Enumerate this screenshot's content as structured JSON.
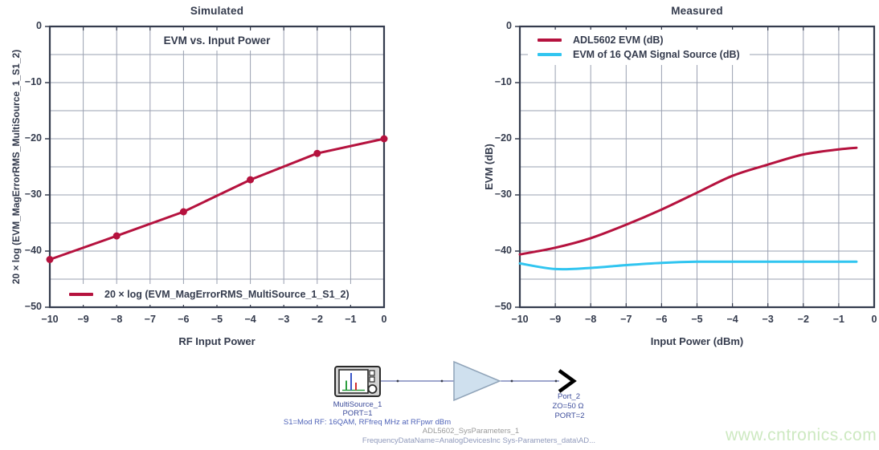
{
  "colors": {
    "crimson": "#b5123e",
    "cyan": "#31c5f0",
    "navy": "#343b4d",
    "grid": "#9aa0b1",
    "watermark_green": "#cde9c1",
    "amp_fill": "#cfe0ee",
    "amp_stroke": "#8fa3b8"
  },
  "chart_data": [
    {
      "type": "line",
      "title": "Simulated",
      "annotation": "EVM vs. Input Power",
      "xlabel": "RF Input Power",
      "ylabel": "20 × log (EVM_MagErrorRMS_MultiSource_1_S1_2)",
      "xlim": [
        -10,
        0
      ],
      "ylim": [
        -50,
        0
      ],
      "grid": true,
      "xtick_values": [
        -10,
        -9,
        -8,
        -7,
        -6,
        -5,
        -4,
        -3,
        -2,
        -1,
        0
      ],
      "xtick_labels": [
        "−10",
        "−9",
        "−8",
        "−7",
        "−6",
        "−5",
        "−4",
        "−3",
        "−2",
        "−1",
        "0"
      ],
      "ytick_values": [
        0,
        -10,
        -20,
        -30,
        -40,
        -50
      ],
      "ytick_labels": [
        "0",
        "−10",
        "−20",
        "−30",
        "−40",
        "−50"
      ],
      "ygrid_minor": [
        -5,
        -15,
        -25,
        -35,
        -45
      ],
      "legend_position": "bottom-left",
      "series": [
        {
          "name": "20 × log (EVM_MagErrorRMS_MultiSource_1_S1_2)",
          "color": "#b5123e",
          "smooth": false,
          "markers": true,
          "x": [
            -10,
            -8,
            -6,
            -4,
            -2,
            0
          ],
          "y": [
            -41.5,
            -37.3,
            -33.0,
            -27.3,
            -22.6,
            -20.0
          ]
        }
      ]
    },
    {
      "type": "line",
      "title": "Measured",
      "annotation": "",
      "xlabel": "Input Power (dBm)",
      "ylabel": "EVM (dB)",
      "xlim": [
        -10,
        0
      ],
      "ylim": [
        -50,
        0
      ],
      "grid": true,
      "xtick_values": [
        -10,
        -9,
        -8,
        -7,
        -6,
        -5,
        -4,
        -3,
        -2,
        -1,
        0
      ],
      "xtick_labels": [
        "−10",
        "−9",
        "−8",
        "−7",
        "−6",
        "−5",
        "−4",
        "−3",
        "−2",
        "−1",
        "0"
      ],
      "ytick_values": [
        0,
        -10,
        -20,
        -30,
        -40,
        -50
      ],
      "ytick_labels": [
        "0",
        "−10",
        "−20",
        "−30",
        "−40",
        "−50"
      ],
      "ygrid_minor": [
        -5,
        -15,
        -25,
        -35,
        -45
      ],
      "legend_position": "top-left",
      "series": [
        {
          "name": "ADL5602 EVM (dB)",
          "color": "#b5123e",
          "smooth": true,
          "markers": false,
          "x": [
            -10,
            -9,
            -8,
            -7,
            -6,
            -5,
            -4,
            -3,
            -2,
            -1,
            -0.5
          ],
          "y": [
            -40.6,
            -39.4,
            -37.7,
            -35.3,
            -32.6,
            -29.6,
            -26.6,
            -24.6,
            -22.8,
            -21.9,
            -21.6
          ]
        },
        {
          "name": "EVM of 16 QAM Signal Source (dB)",
          "color": "#31c5f0",
          "smooth": true,
          "markers": false,
          "x": [
            -10,
            -9,
            -8,
            -7,
            -6,
            -5,
            -4,
            -3,
            -2,
            -1,
            -0.5
          ],
          "y": [
            -42.2,
            -43.2,
            -43.0,
            -42.5,
            -42.1,
            -41.9,
            -41.9,
            -41.9,
            -41.9,
            -41.9,
            -41.9
          ]
        }
      ]
    }
  ],
  "schematic": {
    "source_name": "MultiSource_1",
    "source_port": "PORT=1",
    "source_params": "S1=Mod RF: 16QAM, RFfreq MHz at RFpwr dBm",
    "amp_name": "ADL5602_SysParameters_1",
    "amp_params": "FrequencyDataName=AnalogDevicesInc Sys-Parameters_data\\AD...",
    "port_name": "Port_2",
    "port_impedance": "ZO=50 Ω",
    "port_number": "PORT=2",
    "icons": {
      "source": "signal-source-instrument-icon",
      "amplifier": "amplifier-triangle-icon",
      "port": "output-port-arrow-icon"
    }
  },
  "watermark": {
    "text": "www.cntronics.com"
  }
}
